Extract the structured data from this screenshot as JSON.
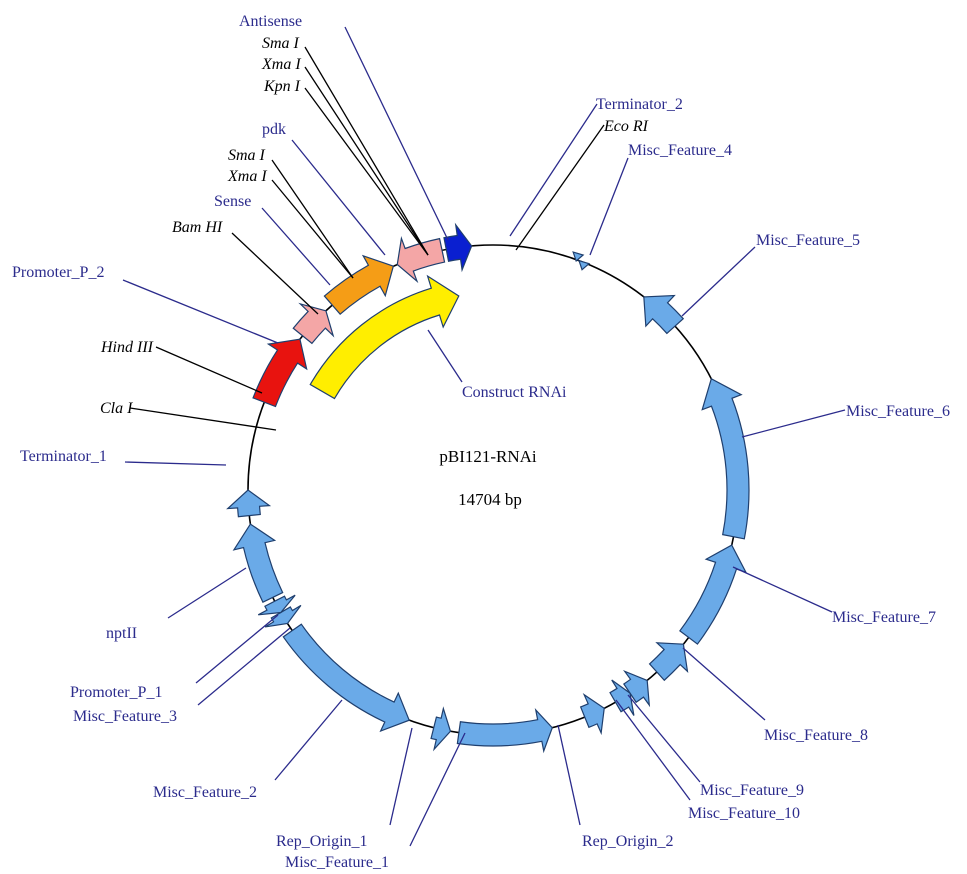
{
  "plasmid": {
    "name": "pBI121-RNAi",
    "size": "14704 bp"
  },
  "colors": {
    "feature_blue": "#6aaae8",
    "promoter_red": "#e8130f",
    "sense_pink": "#f4a6a6",
    "pdk_orange": "#f59d16",
    "terminator_navy": "#0a1fd0",
    "construct_yellow": "#ffee00",
    "label_blue": "#2b2b8c"
  },
  "labels": {
    "antisense": "Antisense",
    "sma1_top": "Sma I",
    "xma1_top": "Xma I",
    "kpn1": "Kpn I",
    "pdk": "pdk",
    "sma1": "Sma I",
    "xma1": "Xma I",
    "sense": "Sense",
    "bamhi": "Bam HI",
    "promoter_p_2": "Promoter_P_2",
    "hindiii": "Hind III",
    "cla1": "Cla I",
    "terminator_1": "Terminator_1",
    "nptii": "nptII",
    "promoter_p_1": "Promoter_P_1",
    "misc_feature_3": "Misc_Feature_3",
    "misc_feature_2": "Misc_Feature_2",
    "rep_origin_1": "Rep_Origin_1",
    "misc_feature_1": "Misc_Feature_1",
    "rep_origin_2": "Rep_Origin_2",
    "misc_feature_9": "Misc_Feature_9",
    "misc_feature_10": "Misc_Feature_10",
    "misc_feature_8": "Misc_Feature_8",
    "misc_feature_7": "Misc_Feature_7",
    "misc_feature_6": "Misc_Feature_6",
    "misc_feature_5": "Misc_Feature_5",
    "misc_feature_4": "Misc_Feature_4",
    "terminator_2": "Terminator_2",
    "ecori": "Eco RI",
    "construct_rnai": "Construct RNAi"
  }
}
